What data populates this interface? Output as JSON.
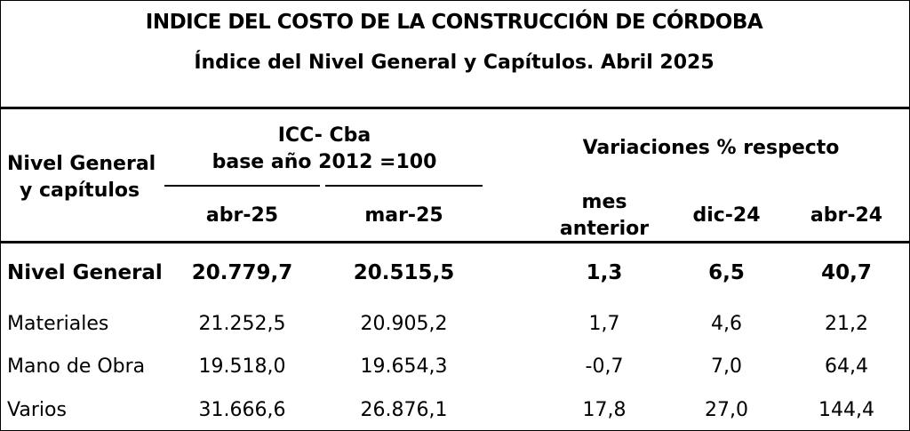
{
  "title": "INDICE DEL COSTO DE LA CONSTRUCCIÓN DE CÓRDOBA",
  "subtitle": "Índice del Nivel General y Capítulos.  Abril 2025",
  "header": {
    "row_label_line1": "Nivel General",
    "row_label_line2": "y capítulos",
    "icc_line1": "ICC- Cba",
    "icc_line2": "base año 2012 =100",
    "variations": "Variaciones % respecto",
    "columns": [
      "abr-25",
      "mar-25",
      "mes",
      "anterior",
      "dic-24",
      "abr-24"
    ]
  },
  "rows": [
    {
      "label": "Nivel General",
      "values": [
        "20.779,7",
        "20.515,5",
        "1,3",
        "6,5",
        "40,7"
      ],
      "bold": true
    },
    {
      "label": "Materiales",
      "values": [
        "21.252,5",
        "20.905,2",
        "1,7",
        "4,6",
        "21,2"
      ],
      "bold": false
    },
    {
      "label": "Mano de Obra",
      "values": [
        "19.518,0",
        "19.654,3",
        "-0,7",
        "7,0",
        "64,4"
      ],
      "bold": false
    },
    {
      "label": "Varios",
      "values": [
        "31.666,6",
        "26.876,1",
        "17,8",
        "27,0",
        "144,4"
      ],
      "bold": false
    }
  ]
}
